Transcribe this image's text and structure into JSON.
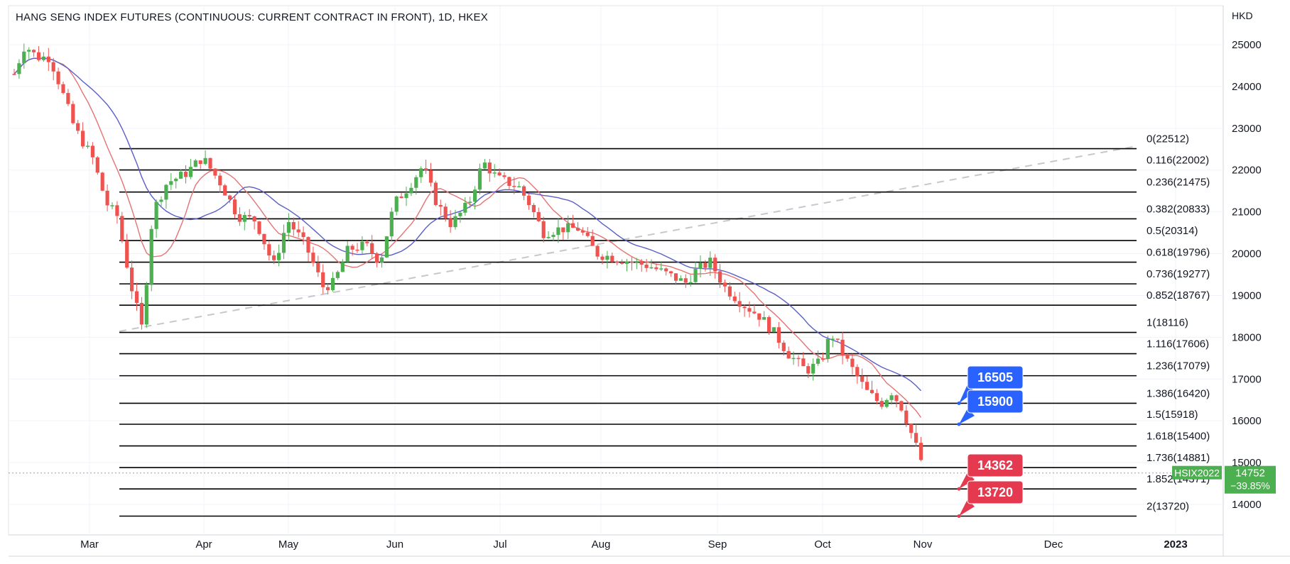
{
  "title": "HANG SENG INDEX FUTURES (CONTINUOUS: CURRENT CONTRACT IN FRONT), 1D, HKEX",
  "currency": "HKD",
  "colors": {
    "up": "#4caf50",
    "down": "#ef5350",
    "ma_fast": "#e57373",
    "ma_slow": "#5b5fc7",
    "fib": "#000000",
    "trend": "#c8c8c8",
    "blue_label": "#2962ff",
    "red_label": "#e53950",
    "price_tag": "#4caf50"
  },
  "chart_data": {
    "type": "candlestick",
    "y_axis": {
      "ticks": [
        25000,
        24000,
        23000,
        22000,
        21000,
        20000,
        19000,
        18000,
        17000,
        16000,
        15000,
        14000
      ],
      "range": [
        13200,
        25800
      ]
    },
    "x_axis": {
      "ticks": [
        "Mar",
        "Apr",
        "May",
        "Jun",
        "Jul",
        "Aug",
        "Sep",
        "Oct",
        "Nov",
        "Dec",
        "2023"
      ]
    },
    "fib_levels": [
      {
        "ratio": "0",
        "value": 22512,
        "label": "0(22512)"
      },
      {
        "ratio": "0.116",
        "value": 22002,
        "label": "0.116(22002)"
      },
      {
        "ratio": "0.236",
        "value": 21475,
        "label": "0.236(21475)"
      },
      {
        "ratio": "0.382",
        "value": 20833,
        "label": "0.382(20833)"
      },
      {
        "ratio": "0.5",
        "value": 20314,
        "label": "0.5(20314)"
      },
      {
        "ratio": "0.618",
        "value": 19796,
        "label": "0.618(19796)"
      },
      {
        "ratio": "0.736",
        "value": 19277,
        "label": "0.736(19277)"
      },
      {
        "ratio": "0.852",
        "value": 18767,
        "label": "0.852(18767)"
      },
      {
        "ratio": "1",
        "value": 18116,
        "label": "1(18116)"
      },
      {
        "ratio": "1.116",
        "value": 17606,
        "label": "1.116(17606)"
      },
      {
        "ratio": "1.236",
        "value": 17079,
        "label": "1.236(17079)"
      },
      {
        "ratio": "1.386",
        "value": 16420,
        "label": "1.386(16420)"
      },
      {
        "ratio": "1.5",
        "value": 15918,
        "label": "1.5(15918)"
      },
      {
        "ratio": "1.618",
        "value": 15400,
        "label": "1.618(15400)"
      },
      {
        "ratio": "1.736",
        "value": 14881,
        "label": "1.736(14881)"
      },
      {
        "ratio": "1.852",
        "value": 14371,
        "label": "1.852(14371)"
      },
      {
        "ratio": "2",
        "value": 13720,
        "label": "2(13720)"
      }
    ],
    "price_labels": [
      {
        "text": "16505",
        "color": "blue",
        "points_to": 16420
      },
      {
        "text": "15900",
        "color": "blue",
        "points_to": 15918
      },
      {
        "text": "14362",
        "color": "red",
        "points_to": 14371
      },
      {
        "text": "13720",
        "color": "red",
        "points_to": 13720
      }
    ],
    "symbol_tag": "HSIX2022",
    "last_price": "14752",
    "change_pct": "−39.85%",
    "last_value": 14752,
    "key_closes": [
      {
        "date": "Feb",
        "close": 24900
      },
      {
        "date": "Mar-mid",
        "close": 18200
      },
      {
        "date": "Apr",
        "close": 22100
      },
      {
        "date": "May",
        "close": 19300
      },
      {
        "date": "Jun-end",
        "close": 22200
      },
      {
        "date": "Aug",
        "close": 19600
      },
      {
        "date": "Sep-end",
        "close": 17000
      },
      {
        "date": "Oct-end",
        "close": 14752
      }
    ]
  }
}
